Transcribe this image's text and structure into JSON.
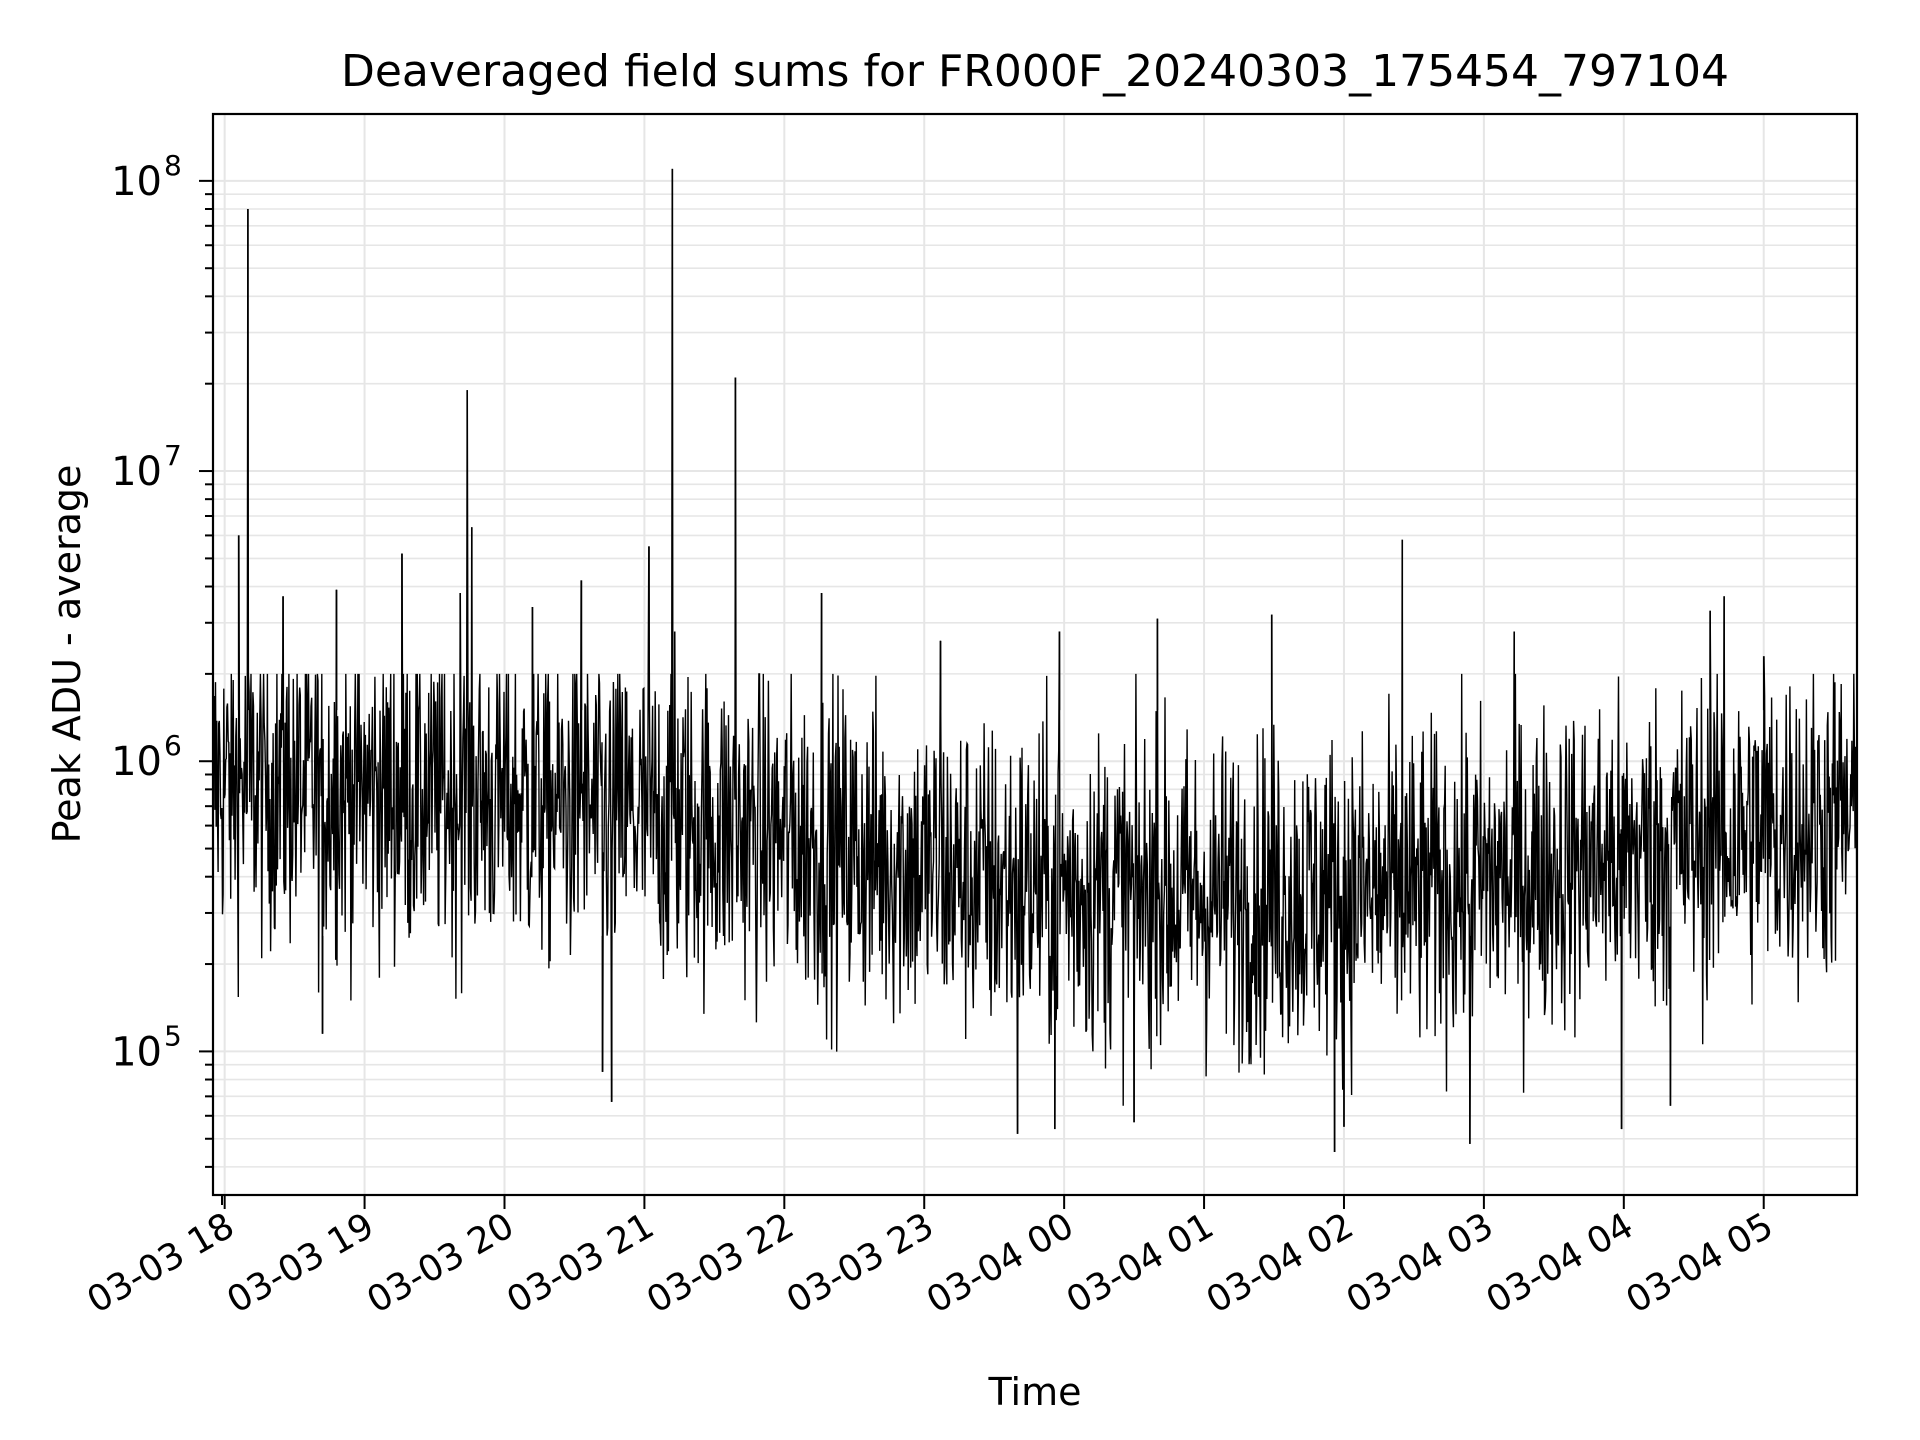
{
  "chart_data": {
    "type": "line",
    "title": "Deaveraged field sums for FR000F_20240303_175454_797104",
    "xlabel": "Time",
    "ylabel": "Peak ADU - average",
    "yscale": "log",
    "grid": true,
    "line_color": "#000000",
    "grid_color": "#e6e6e6",
    "x_tick_labels": [
      "03-03 18",
      "03-03 19",
      "03-03 20",
      "03-03 21",
      "03-03 22",
      "03-03 23",
      "03-04 00",
      "03-04 01",
      "03-04 02",
      "03-04 03",
      "03-04 04",
      "03-04 05"
    ],
    "y_tick_labels": [
      {
        "base": "10",
        "exp": "5"
      },
      {
        "base": "10",
        "exp": "6"
      },
      {
        "base": "10",
        "exp": "7"
      },
      {
        "base": "10",
        "exp": "8"
      }
    ],
    "xlim": [
      "2024-03-03 17:55",
      "2024-03-04 05:40"
    ],
    "ylim": [
      32000,
      170000000
    ],
    "background_series": {
      "description_points": 2600,
      "typical_median": [
        {
          "x": "2024-03-03 17:55",
          "y": 850000
        },
        {
          "x": "2024-03-03 20:00",
          "y": 750000
        },
        {
          "x": "2024-03-03 22:00",
          "y": 550000
        },
        {
          "x": "2024-03-03 23:30",
          "y": 380000
        },
        {
          "x": "2024-03-04 01:00",
          "y": 340000
        },
        {
          "x": "2024-03-04 02:30",
          "y": 350000
        },
        {
          "x": "2024-03-04 04:00",
          "y": 480000
        },
        {
          "x": "2024-03-04 05:40",
          "y": 650000
        }
      ]
    },
    "peaks": [
      {
        "x": "2024-03-03 18:10",
        "y": 80000000
      },
      {
        "x": "2024-03-03 18:06",
        "y": 6000000
      },
      {
        "x": "2024-03-03 18:25",
        "y": 3700000
      },
      {
        "x": "2024-03-03 18:48",
        "y": 3900000
      },
      {
        "x": "2024-03-03 19:16",
        "y": 5200000
      },
      {
        "x": "2024-03-03 19:41",
        "y": 3800000
      },
      {
        "x": "2024-03-03 19:44",
        "y": 19000000
      },
      {
        "x": "2024-03-03 19:46",
        "y": 6400000
      },
      {
        "x": "2024-03-03 20:12",
        "y": 3400000
      },
      {
        "x": "2024-03-03 20:33",
        "y": 4200000
      },
      {
        "x": "2024-03-03 21:02",
        "y": 5500000
      },
      {
        "x": "2024-03-03 21:12",
        "y": 110000000
      },
      {
        "x": "2024-03-03 21:13",
        "y": 2800000
      },
      {
        "x": "2024-03-03 21:39",
        "y": 21000000
      },
      {
        "x": "2024-03-03 22:16",
        "y": 3800000
      },
      {
        "x": "2024-03-03 23:07",
        "y": 2600000
      },
      {
        "x": "2024-03-03 23:58",
        "y": 2800000
      },
      {
        "x": "2024-03-04 00:40",
        "y": 3100000
      },
      {
        "x": "2024-03-04 01:29",
        "y": 3200000
      },
      {
        "x": "2024-03-04 02:25",
        "y": 5800000
      },
      {
        "x": "2024-03-04 03:13",
        "y": 2800000
      },
      {
        "x": "2024-03-04 04:37",
        "y": 3300000
      },
      {
        "x": "2024-03-04 04:43",
        "y": 3700000
      },
      {
        "x": "2024-03-04 05:00",
        "y": 2300000
      }
    ],
    "dips": [
      {
        "x": "2024-03-03 18:42",
        "y": 115000
      },
      {
        "x": "2024-03-03 20:42",
        "y": 85000
      },
      {
        "x": "2024-03-03 20:46",
        "y": 67000
      },
      {
        "x": "2024-03-03 23:40",
        "y": 52000
      },
      {
        "x": "2024-03-03 23:56",
        "y": 54000
      },
      {
        "x": "2024-03-04 00:30",
        "y": 57000
      },
      {
        "x": "2024-03-04 01:56",
        "y": 45000
      },
      {
        "x": "2024-03-04 02:00",
        "y": 55000
      },
      {
        "x": "2024-03-04 02:54",
        "y": 48000
      },
      {
        "x": "2024-03-04 03:59",
        "y": 54000
      },
      {
        "x": "2024-03-04 04:20",
        "y": 65000
      },
      {
        "x": "2024-03-04 05:40",
        "y": 140000
      }
    ]
  }
}
